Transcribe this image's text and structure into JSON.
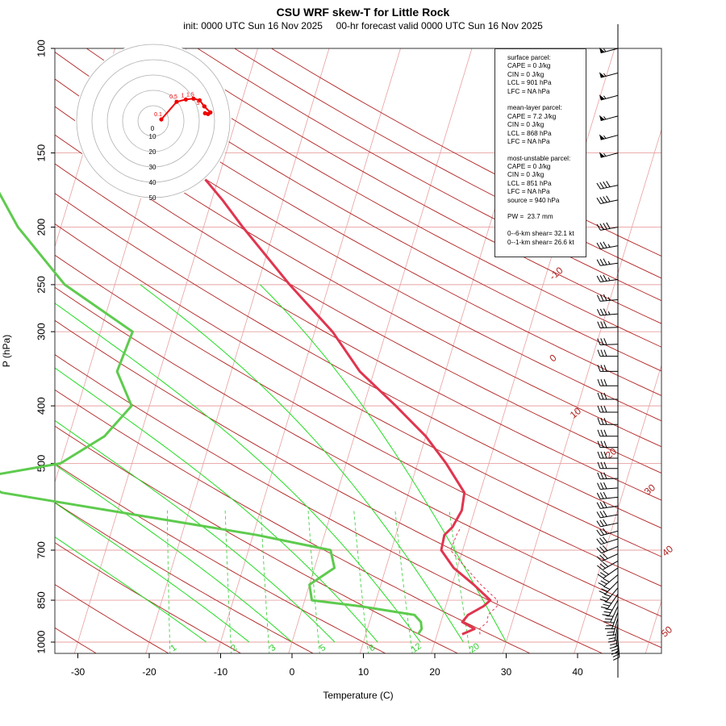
{
  "chart_data": {
    "type": "line",
    "title": "CSU WRF skew-T for Little Rock",
    "subtitle": "init: 0000 UTC Sun 16 Nov 2025     00-hr forecast valid 0000 UTC Sun 16 Nov 2025",
    "xlabel": "Temperature (C)",
    "ylabel": "P (hPa)",
    "skew": true,
    "y_scale": "log",
    "xlim": [
      -33,
      50
    ],
    "ylim": [
      1000,
      100
    ],
    "grid": true,
    "x_ticks": [
      -30,
      -20,
      -10,
      0,
      10,
      20,
      30,
      40
    ],
    "y_ticks": [
      100,
      150,
      200,
      250,
      300,
      400,
      500,
      700,
      850,
      1000
    ],
    "colors": {
      "temperature": "#e0354f",
      "dewpoint": "#5ecb4e",
      "dry_adiabat": "#b22222",
      "moist_adiabat": "#22dd22",
      "mixing_ratio": "#33cc33",
      "isotherm": "#e8a0a0",
      "hodograph": "#ee0000"
    },
    "isotherm_labels": [
      "-10",
      "0",
      "10",
      "20",
      "30",
      "40",
      "50"
    ],
    "mixing_ratio_labels": [
      "1",
      "2",
      "3",
      "5",
      "8",
      "12",
      "20"
    ],
    "series": [
      {
        "name": "temperature",
        "points": [
          [
            970,
            23.5
          ],
          [
            950,
            25.0
          ],
          [
            925,
            23.0
          ],
          [
            900,
            23.5
          ],
          [
            870,
            25.3
          ],
          [
            850,
            26.0
          ],
          [
            800,
            23.0
          ],
          [
            750,
            19.5
          ],
          [
            700,
            17.0
          ],
          [
            660,
            16.8
          ],
          [
            640,
            17.6
          ],
          [
            600,
            18.2
          ],
          [
            560,
            17.8
          ],
          [
            500,
            14.0
          ],
          [
            450,
            10.0
          ],
          [
            400,
            4.5
          ],
          [
            350,
            -2.0
          ],
          [
            300,
            -7.5
          ],
          [
            250,
            -15.5
          ],
          [
            200,
            -24.5
          ],
          [
            180,
            -28.5
          ],
          [
            150,
            -36.0
          ],
          [
            130,
            -39.0
          ],
          [
            110,
            -42.5
          ],
          [
            100,
            -44.0
          ]
        ]
      },
      {
        "name": "parcel",
        "points": [
          [
            970,
            26.0
          ],
          [
            950,
            25.7
          ],
          [
            925,
            26.5
          ],
          [
            900,
            26.3
          ],
          [
            870,
            27.2
          ],
          [
            850,
            27.0
          ],
          [
            800,
            24.0
          ],
          [
            700,
            18.3
          ],
          [
            660,
            18.5
          ],
          [
            640,
            18.8
          ]
        ]
      },
      {
        "name": "dewpoint",
        "points": [
          [
            970,
            17.3
          ],
          [
            950,
            17.6
          ],
          [
            925,
            17.2
          ],
          [
            900,
            16.0
          ],
          [
            870,
            8.0
          ],
          [
            850,
            1.0
          ],
          [
            800,
            0.0
          ],
          [
            750,
            2.8
          ],
          [
            700,
            1.5
          ],
          [
            660,
            -9.5
          ],
          [
            560,
            -47.0
          ],
          [
            530,
            -51.5
          ],
          [
            500,
            -40.0
          ],
          [
            450,
            -35.0
          ],
          [
            400,
            -32.5
          ],
          [
            350,
            -36.0
          ],
          [
            300,
            -35.5
          ],
          [
            250,
            -47.0
          ],
          [
            200,
            -56.0
          ],
          [
            170,
            -61.0
          ],
          [
            140,
            -67.0
          ],
          [
            110,
            -75.0
          ],
          [
            100,
            -80.0
          ]
        ]
      }
    ],
    "hodograph": {
      "rings": [
        "10",
        "20",
        "30",
        "40",
        "50"
      ],
      "points": [
        [
          0.0,
          0.0
        ],
        [
          -11.5,
          10.0
        ],
        [
          -13.0,
          16.0
        ],
        [
          -13.5,
          21.0
        ],
        [
          -12.5,
          25.0
        ],
        [
          -8.5,
          28.0
        ],
        [
          -4.5,
          32.0
        ],
        [
          -3.5,
          30.5
        ],
        [
          -4.0,
          28.5
        ]
      ],
      "labels": [
        {
          "text": "0.5",
          "at": [
            -11.5,
            10.0
          ]
        },
        {
          "text": "0.1",
          "at": [
            0.0,
            0.0
          ]
        },
        {
          "text": "1",
          "at": [
            -12.5,
            16.0
          ]
        },
        {
          "text": "1.5",
          "at": [
            -13.0,
            21.0
          ]
        },
        {
          "text": "5",
          "at": [
            -7.5,
            26.0
          ]
        },
        {
          "text": "4",
          "at": [
            -4.5,
            31.0
          ]
        }
      ]
    },
    "wind_barbs": {
      "pressures": [
        100,
        110,
        120,
        130,
        140,
        150,
        170,
        180,
        200,
        215,
        230,
        245,
        265,
        280,
        295,
        315,
        330,
        350,
        370,
        390,
        410,
        430,
        450,
        470,
        490,
        510,
        530,
        550,
        570,
        590,
        610,
        630,
        650,
        670,
        690,
        710,
        730,
        750,
        770,
        790,
        810,
        830,
        850,
        870,
        890,
        910,
        930,
        950,
        970,
        990
      ],
      "direction_deg": [
        255,
        255,
        255,
        255,
        255,
        255,
        258,
        258,
        260,
        260,
        262,
        262,
        265,
        265,
        268,
        268,
        270,
        270,
        270,
        270,
        270,
        270,
        270,
        270,
        270,
        270,
        268,
        266,
        264,
        262,
        260,
        258,
        255,
        252,
        248,
        245,
        240,
        235,
        230,
        225,
        220,
        215,
        210,
        205,
        200,
        195,
        190,
        185,
        180,
        175
      ],
      "speed_kt": [
        55,
        55,
        55,
        55,
        55,
        55,
        40,
        40,
        40,
        35,
        35,
        35,
        35,
        35,
        30,
        30,
        30,
        30,
        30,
        30,
        30,
        30,
        30,
        30,
        30,
        30,
        30,
        30,
        30,
        30,
        30,
        30,
        30,
        30,
        30,
        30,
        30,
        30,
        30,
        30,
        30,
        30,
        30,
        30,
        25,
        25,
        25,
        25,
        25,
        25
      ]
    }
  },
  "indices": {
    "lines": [
      "surface parcel:",
      "CAPE = 0 J/kg",
      "CIN = 0 J/kg",
      "LCL = 901 hPa",
      "LFC = NA hPa",
      "",
      "mean-layer parcel:",
      "CAPE = 7.2 J/kg",
      "CIN = 0 J/kg",
      "LCL = 868 hPa",
      "LFC = NA hPa",
      "",
      "most-unstable parcel:",
      "CAPE = 0 J/kg",
      "CIN = 0 J/kg",
      "LCL = 851 hPa",
      "LFC = NA hPa",
      "source = 940 hPa",
      "",
      "PW =  23.7 mm",
      "",
      "0--6-km shear= 32.1 kt",
      "0--1-km shear= 26.6 kt"
    ]
  }
}
